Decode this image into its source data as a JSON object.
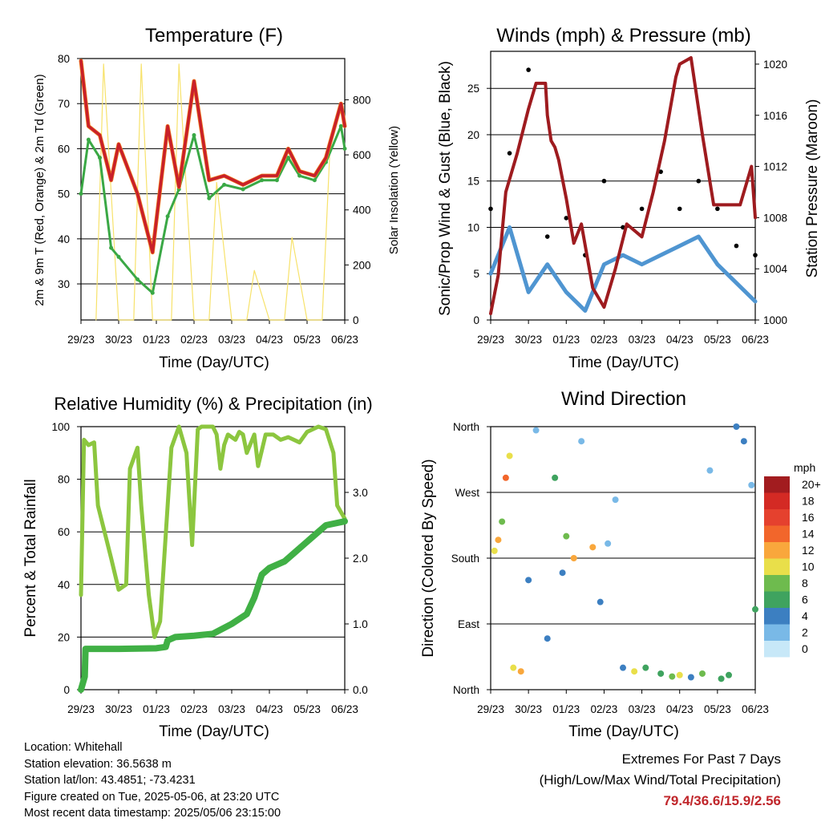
{
  "colors": {
    "temp_2m": "#c8202a",
    "temp_9m": "#f07c1f",
    "dewpoint": "#3aa845",
    "solar": "#f7e26b",
    "pressure": "#9e1b1f",
    "wind_sonic": "#4f95d1",
    "gust": "#000000",
    "humidity": "#8cc63f",
    "precip": "#40b045"
  },
  "wind_colorbar": {
    "unit": "mph",
    "labels": [
      "20+",
      "18",
      "16",
      "14",
      "12",
      "10",
      "8",
      "6",
      "4",
      "2",
      "0"
    ],
    "colors": [
      "#a21c1f",
      "#d42a24",
      "#e5412e",
      "#f2662b",
      "#f9a73c",
      "#e9df4a",
      "#6ebb4e",
      "#3fa35f",
      "#3c7fc1",
      "#79b9e7",
      "#c7e8f8"
    ]
  },
  "time_axis": [
    "29/23",
    "30/23",
    "01/23",
    "02/23",
    "03/23",
    "04/23",
    "05/23",
    "06/23"
  ],
  "chart_data": [
    {
      "type": "line",
      "title": "Temperature (F)",
      "xlabel": "Time (Day/UTC)",
      "ylabel": "2m & 9m T (Red, Orange) & 2m Td (Green)",
      "y2label": "Solar Insolation (Yellow)",
      "ylim": [
        22,
        80
      ],
      "y2lim": [
        0,
        950
      ],
      "yticks": [
        30,
        40,
        50,
        60,
        70,
        80
      ],
      "y2ticks": [
        0,
        200,
        400,
        600,
        800
      ],
      "series": [
        {
          "name": "2m T",
          "x": [
            0,
            0.2,
            0.5,
            0.8,
            1.0,
            1.5,
            1.9,
            2.3,
            2.6,
            3.0,
            3.4,
            3.8,
            4.3,
            4.8,
            5.2,
            5.5,
            5.8,
            6.2,
            6.5,
            6.9,
            7.0
          ],
          "values": [
            79.5,
            65,
            63,
            53,
            61,
            50,
            37,
            65,
            51.5,
            75,
            53,
            54,
            52,
            54,
            54,
            60,
            55,
            54,
            58,
            70,
            65
          ]
        },
        {
          "name": "2m Td",
          "x": [
            0,
            0.2,
            0.5,
            0.8,
            1.0,
            1.5,
            1.9,
            2.3,
            2.6,
            3.0,
            3.4,
            3.8,
            4.3,
            4.8,
            5.2,
            5.5,
            5.8,
            6.2,
            6.5,
            6.9,
            7.0
          ],
          "values": [
            50,
            62,
            58,
            38,
            36,
            31,
            28,
            45,
            51,
            63,
            49,
            52,
            51,
            53,
            53,
            58,
            54,
            53,
            57,
            65,
            60
          ]
        },
        {
          "name": "Solar",
          "x": [
            0.4,
            0.6,
            1.0,
            1.4,
            1.6,
            1.9,
            2.4,
            2.6,
            3.0,
            3.4,
            3.6,
            4.0,
            4.4,
            4.6,
            5.0,
            5.4,
            5.6,
            6.0,
            6.4,
            6.6
          ],
          "values": [
            0,
            930,
            0,
            0,
            930,
            0,
            0,
            930,
            0,
            0,
            500,
            0,
            0,
            180,
            0,
            0,
            300,
            0,
            0,
            600
          ]
        }
      ]
    },
    {
      "type": "line",
      "title": "Winds (mph) & Pressure (mb)",
      "xlabel": "Time (Day/UTC)",
      "ylabel": "Sonic/Prop Wind & Gust (Blue, Black)",
      "y2label": "Station Pressure (Maroon)",
      "ylim": [
        0,
        29
      ],
      "y2lim": [
        1000,
        1021
      ],
      "yticks": [
        0,
        5,
        10,
        15,
        20,
        25
      ],
      "y2ticks": [
        1000,
        1004,
        1008,
        1012,
        1016,
        1020
      ],
      "series": [
        {
          "name": "Pressure",
          "x": [
            0,
            0.2,
            0.4,
            0.7,
            1.0,
            1.2,
            1.45,
            1.5,
            1.6,
            1.7,
            1.8,
            2.0,
            2.2,
            2.4,
            2.7,
            3.0,
            3.3,
            3.6,
            4.0,
            4.3,
            4.6,
            4.9,
            5.0,
            5.3,
            5.6,
            5.9,
            6.2,
            6.6,
            6.9,
            7.0
          ],
          "values": [
            1000.5,
            1003.5,
            1010,
            1013,
            1016.5,
            1018.5,
            1018.5,
            1016,
            1014,
            1013.5,
            1012.5,
            1009.5,
            1006,
            1007.5,
            1002.5,
            1001,
            1004,
            1007.5,
            1006.5,
            1010,
            1014,
            1019,
            1020,
            1020.5,
            1014.5,
            1009,
            1009,
            1009,
            1012,
            1008
          ]
        },
        {
          "name": "Sonic wind",
          "x": [
            0,
            0.5,
            1.0,
            1.5,
            2.0,
            2.5,
            3.0,
            3.5,
            4.0,
            4.5,
            5.0,
            5.5,
            6.0,
            6.5,
            7.0
          ],
          "values": [
            5,
            10,
            3,
            6,
            3,
            1,
            6,
            7,
            6,
            7,
            8,
            9,
            6,
            4,
            2
          ]
        },
        {
          "name": "Gust",
          "x": [
            0,
            0.5,
            1.0,
            1.5,
            2.0,
            2.5,
            3.0,
            3.5,
            4.0,
            4.5,
            5.0,
            5.5,
            6.0,
            6.5,
            7.0
          ],
          "values": [
            12,
            18,
            27,
            9,
            11,
            7,
            15,
            10,
            12,
            16,
            12,
            15,
            12,
            8,
            7
          ]
        }
      ]
    },
    {
      "type": "line",
      "title": "Relative Humidity (%) & Precipitation (in)",
      "xlabel": "Time (Day/UTC)",
      "ylabel": "Percent & Total Rainfall",
      "ylim": [
        0,
        100
      ],
      "y2lim": [
        0,
        4
      ],
      "yticks": [
        0,
        20,
        40,
        60,
        80,
        100
      ],
      "y2ticks": [
        "0.0",
        "1.0",
        "2.0",
        "3.0"
      ],
      "series": [
        {
          "name": "Humidity",
          "x": [
            0,
            0.08,
            0.2,
            0.35,
            0.45,
            0.8,
            1.0,
            1.2,
            1.3,
            1.5,
            1.6,
            1.8,
            1.95,
            2.1,
            2.4,
            2.6,
            2.8,
            2.95,
            3.1,
            3.2,
            3.5,
            3.6,
            3.7,
            3.8,
            3.9,
            4.1,
            4.2,
            4.3,
            4.4,
            4.6,
            4.7,
            4.9,
            5.1,
            5.3,
            5.5,
            5.8,
            6.0,
            6.3,
            6.5,
            6.7,
            6.8,
            7.0
          ],
          "values": [
            36,
            95,
            93,
            94,
            70,
            50,
            38,
            40,
            84,
            92,
            70,
            36,
            20,
            26,
            92,
            100,
            90,
            55,
            99,
            100,
            100,
            97,
            84,
            93,
            97,
            95,
            98,
            97,
            90,
            97,
            85,
            97,
            97,
            95,
            96,
            94,
            98,
            100,
            99,
            90,
            70,
            65
          ]
        },
        {
          "name": "Precipitation",
          "x": [
            0,
            0.1,
            0.12,
            0.3,
            1.0,
            2.0,
            2.25,
            2.3,
            2.5,
            3.0,
            3.5,
            4.0,
            4.4,
            4.6,
            4.8,
            5.0,
            5.4,
            5.7,
            6.0,
            6.3,
            6.5,
            7.0
          ],
          "values": [
            0,
            0.2,
            0.62,
            0.62,
            0.62,
            0.63,
            0.65,
            0.75,
            0.8,
            0.82,
            0.85,
            1.0,
            1.15,
            1.4,
            1.75,
            1.85,
            1.95,
            2.1,
            2.25,
            2.4,
            2.5,
            2.56
          ]
        }
      ]
    },
    {
      "type": "scatter",
      "title": "Wind Direction",
      "xlabel": "Time (Day/UTC)",
      "ylabel": "Direction (Colored By Speed)",
      "ylim": [
        0,
        360
      ],
      "yticks": [
        "North",
        "East",
        "South",
        "West",
        "North"
      ],
      "series": [
        {
          "name": "Direction",
          "x": [
            0.1,
            0.2,
            0.3,
            0.4,
            0.5,
            0.6,
            0.8,
            1.0,
            1.2,
            1.5,
            1.7,
            1.9,
            2.0,
            2.2,
            2.4,
            2.7,
            2.9,
            3.1,
            3.3,
            3.5,
            3.8,
            4.1,
            4.5,
            4.8,
            5.0,
            5.3,
            5.6,
            5.8,
            6.1,
            6.3,
            6.5,
            6.7,
            6.9,
            7.0
          ],
          "values": [
            190,
            205,
            230,
            290,
            320,
            30,
            25,
            150,
            355,
            70,
            290,
            160,
            210,
            180,
            340,
            195,
            120,
            200,
            260,
            30,
            25,
            30,
            22,
            18,
            20,
            17,
            22,
            300,
            15,
            20,
            360,
            340,
            280,
            110
          ],
          "speeds": [
            10,
            12,
            8,
            14,
            10,
            9,
            11,
            3,
            2,
            4,
            6,
            4,
            7,
            11,
            2,
            12,
            3,
            2,
            1,
            4,
            9,
            6,
            5,
            7,
            10,
            4,
            8,
            2,
            6,
            5,
            4,
            3,
            2,
            6
          ]
        }
      ]
    }
  ],
  "footer": {
    "location": "Location: Whitehall",
    "elevation": "Station elevation: 36.5638 m",
    "latlon": "Station lat/lon: 43.4851; -73.4231",
    "created": "Figure created on Tue, 2025-05-06, at 23:20 UTC",
    "recent": "Most recent data timestamp: 2025/05/06 23:15:00"
  },
  "extremes": {
    "title": "Extremes For Past 7 Days",
    "subtitle": "(High/Low/Max Wind/Total Precipitation)",
    "values": "79.4/36.6/15.9/2.56"
  }
}
